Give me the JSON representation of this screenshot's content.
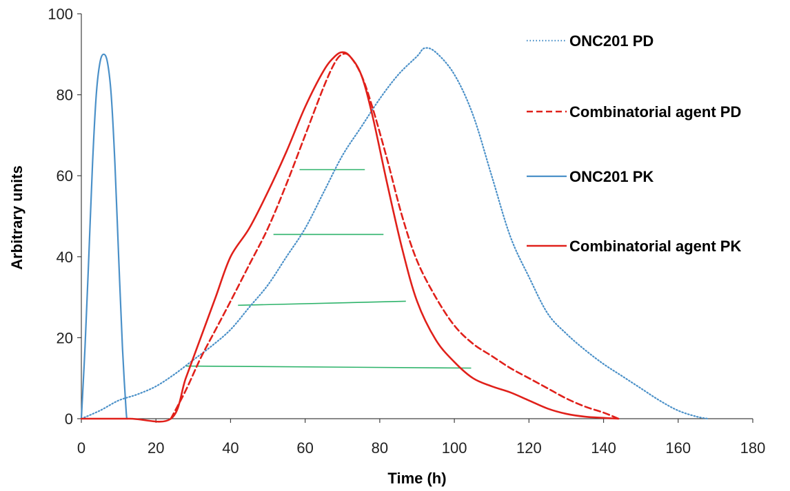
{
  "chart_data": {
    "type": "line",
    "title": "",
    "xlabel": "Time (h)",
    "ylabel": "Arbitrary units",
    "xlim": [
      0,
      180
    ],
    "ylim": [
      0,
      100
    ],
    "xticks": [
      0,
      20,
      40,
      60,
      80,
      100,
      120,
      140,
      160,
      180
    ],
    "yticks": [
      0,
      20,
      40,
      60,
      80,
      100
    ],
    "grid": false,
    "legend_position": "right",
    "series": [
      {
        "name": "ONC201 PD",
        "color": "#4a90c8",
        "style": "dotted",
        "x": [
          0,
          5,
          10,
          15,
          20,
          25,
          30,
          35,
          40,
          45,
          50,
          55,
          60,
          65,
          70,
          75,
          80,
          85,
          90,
          92,
          95,
          100,
          105,
          110,
          115,
          120,
          125,
          130,
          135,
          140,
          145,
          150,
          155,
          160,
          165,
          168
        ],
        "y": [
          0,
          2,
          4.5,
          6,
          8,
          11,
          14.5,
          18,
          22,
          27.5,
          33,
          40,
          47,
          56,
          65,
          72,
          79,
          85,
          89.5,
          91.5,
          90.5,
          85,
          75,
          60,
          45,
          35,
          26,
          21,
          17,
          13.5,
          10.5,
          7.5,
          4.5,
          2,
          0.5,
          0
        ]
      },
      {
        "name": "Combinatorial agent PD",
        "color": "#e0201a",
        "style": "dashed",
        "x": [
          24,
          28,
          32,
          36,
          40,
          45,
          50,
          55,
          60,
          65,
          68,
          70,
          72,
          75,
          78,
          82,
          86,
          90,
          95,
          100,
          105,
          110,
          115,
          120,
          125,
          130,
          135,
          140,
          144
        ],
        "y": [
          0,
          7,
          15,
          22,
          29,
          38,
          47,
          58,
          70,
          82,
          88,
          90,
          89.5,
          85,
          77,
          64,
          50,
          39,
          30,
          23,
          18.5,
          15.5,
          12.5,
          10,
          7.5,
          5,
          3,
          1.5,
          0
        ]
      },
      {
        "name": "ONC201 PK",
        "color": "#4a90c8",
        "style": "solid",
        "x": [
          0,
          1,
          2,
          3,
          4,
          5,
          6,
          7,
          8,
          9,
          10,
          11,
          12,
          12.3
        ],
        "y": [
          0,
          18,
          40,
          63,
          80,
          88,
          90,
          88,
          80,
          63,
          40,
          18,
          2,
          0
        ]
      },
      {
        "name": "Combinatorial agent PK",
        "color": "#e0201a",
        "style": "solid",
        "x": [
          0,
          13,
          24,
          28,
          32,
          36,
          40,
          45,
          50,
          55,
          60,
          65,
          68,
          70,
          72,
          75,
          78,
          82,
          86,
          90,
          95,
          100,
          105,
          110,
          115,
          120,
          125,
          130,
          135,
          140,
          144
        ],
        "y": [
          0,
          0,
          0,
          10,
          20,
          30,
          40,
          47,
          56,
          66,
          77,
          86,
          89.5,
          90.5,
          89.5,
          85,
          75,
          58,
          42,
          29,
          19.5,
          14,
          10,
          8,
          6.5,
          4.5,
          2.5,
          1.2,
          0.5,
          0.2,
          0
        ]
      }
    ],
    "reference_lines": [
      {
        "color": "#2db36a",
        "x": [
          58.5,
          76
        ],
        "y": [
          61.5,
          61.5
        ]
      },
      {
        "color": "#2db36a",
        "x": [
          51.5,
          81
        ],
        "y": [
          45.5,
          45.5
        ]
      },
      {
        "color": "#2db36a",
        "x": [
          42,
          87
        ],
        "y": [
          28,
          29
        ]
      },
      {
        "color": "#2db36a",
        "x": [
          28,
          104.5
        ],
        "y": [
          13,
          12.5
        ]
      }
    ]
  }
}
